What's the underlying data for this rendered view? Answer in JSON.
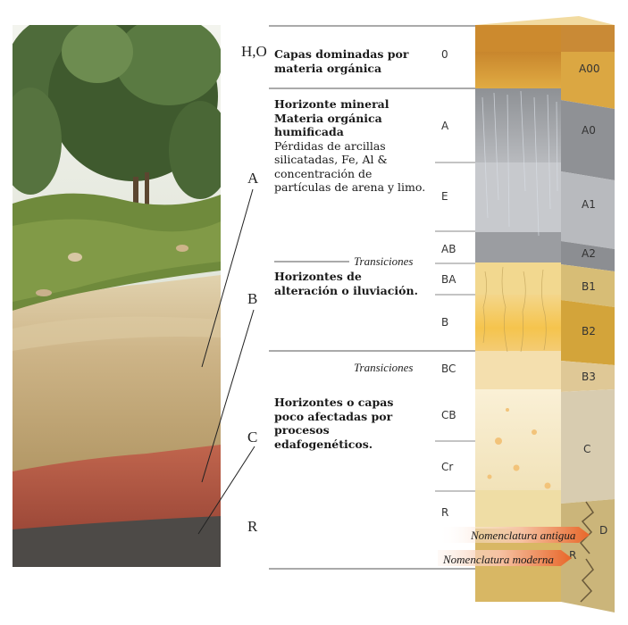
{
  "levels": {
    "h_o": "H,O",
    "a": "A",
    "b": "B",
    "c": "C",
    "r": "R"
  },
  "descriptions": {
    "organic_bold": "Capas dominadas por materia orgánica",
    "mineral_bold": "Horizonte mineral Materia orgánica humificada",
    "mineral_text": "Pérdidas de arcillas silicatadas, Fe, Al & concentración de partículas de arena y limo.",
    "transition_top": "Transiciones",
    "alteration_bold": "Horizontes de alteración o iluviación.",
    "transition_mid": "Transiciones",
    "little_affected_bold": "Horizontes o capas poco afectadas por procesos edafogenéticos."
  },
  "modern_codes": [
    "0",
    "A",
    "E",
    "AB",
    "BA",
    "B",
    "BC",
    "CB",
    "Cr",
    "R"
  ],
  "old_codes": [
    "A00",
    "A0",
    "A1",
    "A2",
    "B1",
    "B2",
    "B3",
    "C",
    "D",
    "R"
  ],
  "legend": {
    "old": "Nomenclatura antigua",
    "modern": "Nomenclatura moderna"
  },
  "colors": {
    "organic": "#d9a441",
    "mineral_a": "#9fa1a4",
    "eluvial": "#c6c8cc",
    "illuvial": "#f2c14e",
    "parent": "#f4e6c2",
    "rock": "#c9b57d",
    "legend_arrow": "#e8672a"
  }
}
